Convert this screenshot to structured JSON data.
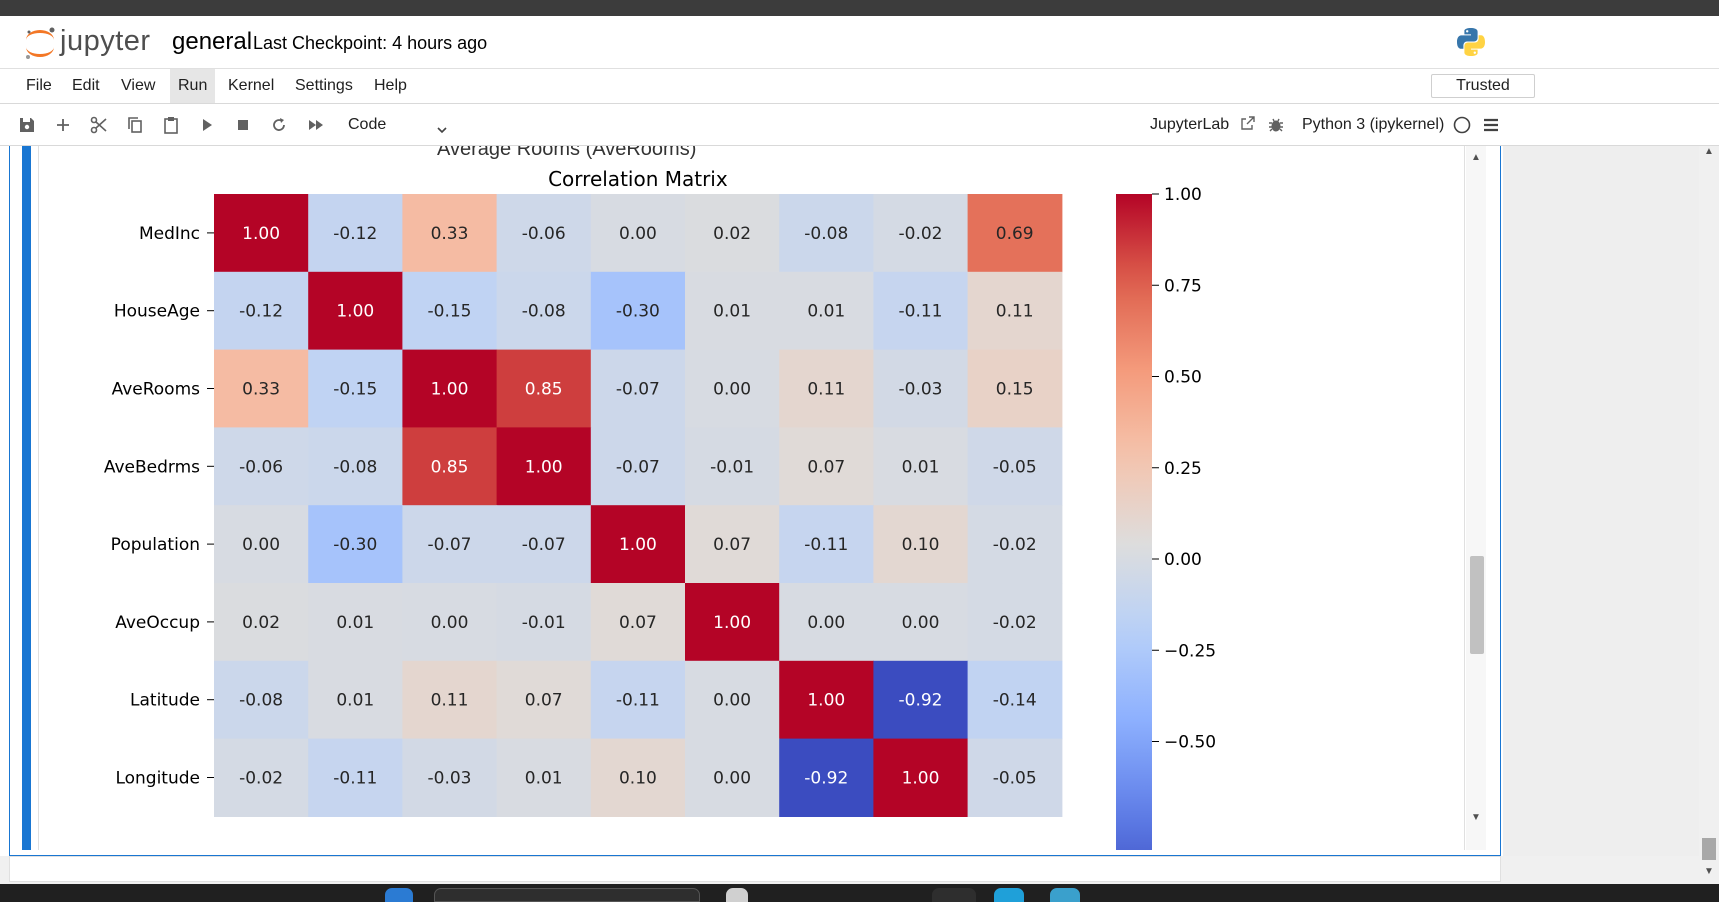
{
  "header": {
    "logo_text": "jupyter",
    "notebook_name": "general",
    "checkpoint": "Last Checkpoint: 4 hours ago"
  },
  "menu": {
    "items": [
      "File",
      "Edit",
      "View",
      "Run",
      "Kernel",
      "Settings",
      "Help"
    ],
    "active": "Run",
    "trusted": "Trusted"
  },
  "toolbar": {
    "icons": [
      "save-icon",
      "add-cell-icon",
      "cut-icon",
      "copy-icon",
      "paste-icon",
      "run-icon",
      "stop-icon",
      "restart-icon",
      "fast-forward-icon"
    ],
    "cell_type": "Code",
    "jupyterlab_label": "JupyterLab",
    "kernel_name": "Python 3 (ipykernel)"
  },
  "output": {
    "clipped_title": "Average Rooms (AveRooms)"
  },
  "chart_data": {
    "type": "heatmap",
    "title": "Correlation Matrix",
    "row_labels": [
      "MedInc",
      "HouseAge",
      "AveRooms",
      "AveBedrms",
      "Population",
      "AveOccup",
      "Latitude",
      "Longitude"
    ],
    "col_count": 9,
    "values": [
      [
        1.0,
        -0.12,
        0.33,
        -0.06,
        0.0,
        0.02,
        -0.08,
        -0.02,
        0.69
      ],
      [
        -0.12,
        1.0,
        -0.15,
        -0.08,
        -0.3,
        0.01,
        0.01,
        -0.11,
        0.11
      ],
      [
        0.33,
        -0.15,
        1.0,
        0.85,
        -0.07,
        -0.0,
        0.11,
        -0.03,
        0.15
      ],
      [
        -0.06,
        -0.08,
        0.85,
        1.0,
        -0.07,
        -0.01,
        0.07,
        0.01,
        -0.05
      ],
      [
        0.0,
        -0.3,
        -0.07,
        -0.07,
        1.0,
        0.07,
        -0.11,
        0.1,
        -0.02
      ],
      [
        0.02,
        0.01,
        -0.0,
        -0.01,
        0.07,
        1.0,
        0.0,
        0.0,
        -0.02
      ],
      [
        -0.08,
        0.01,
        0.11,
        0.07,
        -0.11,
        0.0,
        1.0,
        -0.92,
        -0.14
      ],
      [
        -0.02,
        -0.11,
        -0.03,
        0.01,
        0.1,
        -0.0,
        -0.92,
        1.0,
        -0.05
      ]
    ],
    "colormap": "coolwarm",
    "vmin": -0.92,
    "vmax": 1.0,
    "colorbar_ticks": [
      "1.00",
      "0.75",
      "0.50",
      "0.25",
      "0.00",
      "−0.25",
      "−0.50"
    ],
    "colorbar_tick_values": [
      1.0,
      0.75,
      0.5,
      0.25,
      0.0,
      -0.25,
      -0.5
    ]
  }
}
